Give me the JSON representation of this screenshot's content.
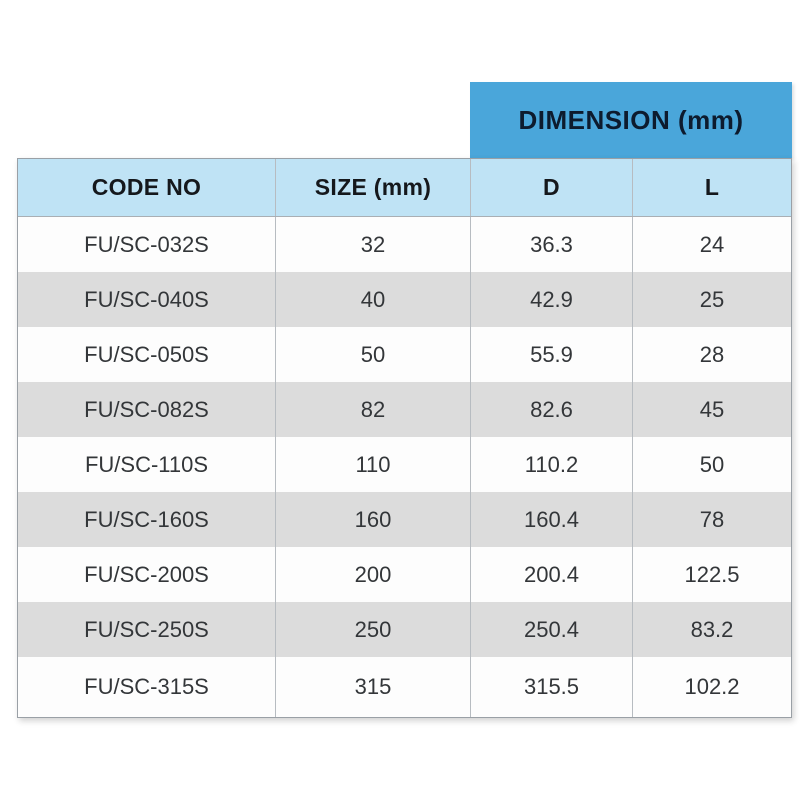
{
  "dimension_header": {
    "label": "DIMENSION (mm)"
  },
  "table": {
    "columns": [
      "CODE NO",
      "SIZE (mm)",
      "D",
      "L"
    ],
    "rows": [
      {
        "code": "FU/SC-032S",
        "size": "32",
        "d": "36.3",
        "l": "24"
      },
      {
        "code": "FU/SC-040S",
        "size": "40",
        "d": "42.9",
        "l": "25"
      },
      {
        "code": "FU/SC-050S",
        "size": "50",
        "d": "55.9",
        "l": "28"
      },
      {
        "code": "FU/SC-082S",
        "size": "82",
        "d": "82.6",
        "l": "45"
      },
      {
        "code": "FU/SC-110S",
        "size": "110",
        "d": "110.2",
        "l": "50"
      },
      {
        "code": "FU/SC-160S",
        "size": "160",
        "d": "160.4",
        "l": "78"
      },
      {
        "code": "FU/SC-200S",
        "size": "200",
        "d": "200.4",
        "l": "122.5"
      },
      {
        "code": "FU/SC-250S",
        "size": "250",
        "d": "250.4",
        "l": "83.2"
      },
      {
        "code": "FU/SC-315S",
        "size": "315",
        "d": "315.5",
        "l": "102.2"
      }
    ]
  },
  "colors": {
    "dimension_header_bg": "#4aa6da",
    "column_header_bg": "#bfe3f5",
    "row_alt_bg": "#dcdcdc",
    "row_bg": "#fdfdfd",
    "border": "#9aa0a6",
    "text": "#333639"
  }
}
